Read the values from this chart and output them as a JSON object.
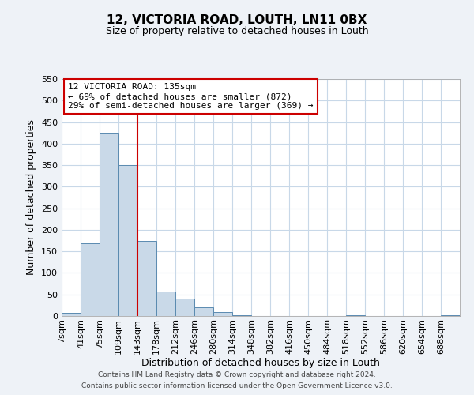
{
  "title": "12, VICTORIA ROAD, LOUTH, LN11 0BX",
  "subtitle": "Size of property relative to detached houses in Louth",
  "xlabel": "Distribution of detached houses by size in Louth",
  "ylabel": "Number of detached properties",
  "bin_labels": [
    "7sqm",
    "41sqm",
    "75sqm",
    "109sqm",
    "143sqm",
    "178sqm",
    "212sqm",
    "246sqm",
    "280sqm",
    "314sqm",
    "348sqm",
    "382sqm",
    "416sqm",
    "450sqm",
    "484sqm",
    "518sqm",
    "552sqm",
    "586sqm",
    "620sqm",
    "654sqm",
    "688sqm"
  ],
  "bar_heights": [
    8,
    168,
    425,
    350,
    175,
    56,
    40,
    20,
    10,
    2,
    0,
    0,
    0,
    0,
    0,
    1,
    0,
    0,
    0,
    0,
    1
  ],
  "bar_color": "#c9d9e8",
  "bar_edge_color": "#5a8ab0",
  "vline_x_idx": 4,
  "vline_color": "#cc0000",
  "annotation_line1": "12 VICTORIA ROAD: 135sqm",
  "annotation_line2": "← 69% of detached houses are smaller (872)",
  "annotation_line3": "29% of semi-detached houses are larger (369) →",
  "ylim": [
    0,
    550
  ],
  "yticks": [
    0,
    50,
    100,
    150,
    200,
    250,
    300,
    350,
    400,
    450,
    500,
    550
  ],
  "footer_line1": "Contains HM Land Registry data © Crown copyright and database right 2024.",
  "footer_line2": "Contains public sector information licensed under the Open Government Licence v3.0.",
  "bg_color": "#eef2f7",
  "plot_bg_color": "#ffffff",
  "grid_color": "#c8d8e8",
  "title_fontsize": 11,
  "subtitle_fontsize": 9,
  "xlabel_fontsize": 9,
  "ylabel_fontsize": 9,
  "tick_fontsize": 8,
  "annotation_fontsize": 8,
  "footer_fontsize": 6.5
}
